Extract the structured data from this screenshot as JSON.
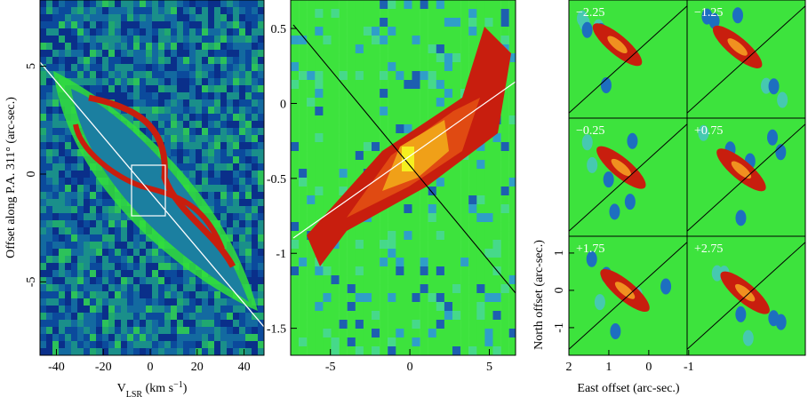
{
  "panels": [
    {
      "xlim": [
        -47,
        48.5
      ],
      "ylim": [
        -8.4,
        8.07
      ],
      "xticks": [
        -40,
        -20,
        0,
        20,
        40
      ],
      "yticks": [
        -5,
        0,
        5
      ],
      "xlabel": {
        "main": "V",
        "sub": "LSR",
        "rest": " (km s",
        "sup": "−1",
        "end": ")"
      },
      "ylabel": "Offset along P.A. 311° (arc-sec.)"
    },
    {
      "xlim": [
        -7.5,
        6.65
      ],
      "ylim": [
        -1.68,
        0.69
      ],
      "xticks": [
        -5,
        0,
        5
      ],
      "yticks": [
        -1.5,
        -1,
        -0.5,
        0,
        0.5
      ]
    }
  ],
  "channel_maps": {
    "labels": [
      "−2.25",
      "−1.25",
      "−0.25",
      "+0.75",
      "+1.75",
      "+2.75"
    ],
    "xlim": [
      2,
      -0.96
    ],
    "ylim": [
      -1.74,
      1.45
    ],
    "xticks": [
      2,
      1,
      0,
      -1
    ],
    "yticks": [
      -1,
      0,
      1
    ],
    "xlabel": "East offset (arc-sec.)",
    "ylabel": "North offset (arc-sec.)"
  }
}
